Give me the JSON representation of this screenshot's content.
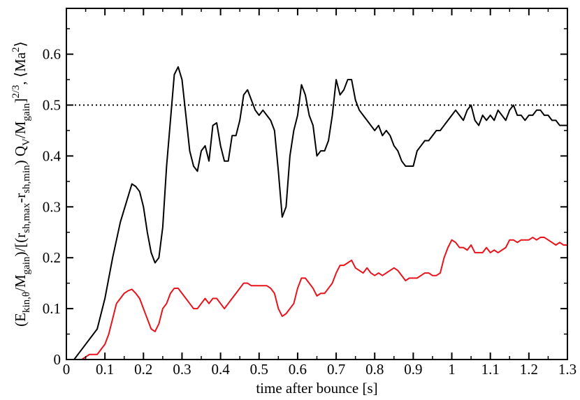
{
  "chart_data": {
    "type": "line",
    "title": "",
    "xlabel": "time after bounce [s]",
    "ylabel_parts": {
      "open": "(E",
      "sub1": "kin,θ",
      "mid1": "/M",
      "sub2": "gain",
      "mid2": ")/[(r",
      "sub3": "sh,max",
      "mid3": "-r",
      "sub4": "sh,min",
      "mid4": ") Q",
      "sub5": "V",
      "mid5": "/M",
      "sub6": "gain",
      "mid6": "]",
      "sup1": "2/3",
      "mid7": ", ⟨Ma",
      "sup2": "2",
      "close": "⟩"
    },
    "xlim": [
      0,
      1.3
    ],
    "ylim": [
      0,
      0.69
    ],
    "xticks": [
      "0",
      "0.1",
      "0.2",
      "0.3",
      "0.4",
      "0.5",
      "0.6",
      "0.7",
      "0.8",
      "0.9",
      "1",
      "1.1",
      "1.2",
      "1.3"
    ],
    "xtick_values": [
      0,
      0.1,
      0.2,
      0.3,
      0.4,
      0.5,
      0.6,
      0.7,
      0.8,
      0.9,
      1.0,
      1.1,
      1.2,
      1.3
    ],
    "yticks": [
      "0",
      "0.1",
      "0.2",
      "0.3",
      "0.4",
      "0.5",
      "0.6"
    ],
    "ytick_values": [
      0,
      0.1,
      0.2,
      0.3,
      0.4,
      0.5,
      0.6
    ],
    "reference_line": {
      "y": 0.5,
      "style": "dotted",
      "color": "#000000"
    },
    "grid": false,
    "series": [
      {
        "color": "#000000",
        "points": [
          [
            0.02,
            0.0
          ],
          [
            0.04,
            0.02
          ],
          [
            0.06,
            0.04
          ],
          [
            0.08,
            0.06
          ],
          [
            0.1,
            0.12
          ],
          [
            0.12,
            0.2
          ],
          [
            0.14,
            0.27
          ],
          [
            0.16,
            0.32
          ],
          [
            0.17,
            0.345
          ],
          [
            0.18,
            0.34
          ],
          [
            0.19,
            0.33
          ],
          [
            0.2,
            0.3
          ],
          [
            0.21,
            0.25
          ],
          [
            0.22,
            0.21
          ],
          [
            0.23,
            0.19
          ],
          [
            0.24,
            0.2
          ],
          [
            0.25,
            0.26
          ],
          [
            0.26,
            0.38
          ],
          [
            0.27,
            0.47
          ],
          [
            0.28,
            0.56
          ],
          [
            0.29,
            0.575
          ],
          [
            0.3,
            0.55
          ],
          [
            0.31,
            0.48
          ],
          [
            0.32,
            0.41
          ],
          [
            0.33,
            0.38
          ],
          [
            0.34,
            0.37
          ],
          [
            0.35,
            0.41
          ],
          [
            0.36,
            0.42
          ],
          [
            0.37,
            0.39
          ],
          [
            0.38,
            0.46
          ],
          [
            0.39,
            0.465
          ],
          [
            0.4,
            0.42
          ],
          [
            0.41,
            0.39
          ],
          [
            0.42,
            0.39
          ],
          [
            0.43,
            0.44
          ],
          [
            0.44,
            0.44
          ],
          [
            0.45,
            0.47
          ],
          [
            0.46,
            0.52
          ],
          [
            0.47,
            0.53
          ],
          [
            0.48,
            0.51
          ],
          [
            0.49,
            0.49
          ],
          [
            0.5,
            0.48
          ],
          [
            0.51,
            0.49
          ],
          [
            0.52,
            0.48
          ],
          [
            0.53,
            0.47
          ],
          [
            0.54,
            0.45
          ],
          [
            0.55,
            0.37
          ],
          [
            0.56,
            0.28
          ],
          [
            0.57,
            0.3
          ],
          [
            0.58,
            0.4
          ],
          [
            0.59,
            0.45
          ],
          [
            0.6,
            0.48
          ],
          [
            0.61,
            0.54
          ],
          [
            0.62,
            0.52
          ],
          [
            0.63,
            0.48
          ],
          [
            0.64,
            0.46
          ],
          [
            0.65,
            0.4
          ],
          [
            0.66,
            0.41
          ],
          [
            0.67,
            0.41
          ],
          [
            0.68,
            0.43
          ],
          [
            0.69,
            0.48
          ],
          [
            0.7,
            0.55
          ],
          [
            0.71,
            0.52
          ],
          [
            0.72,
            0.53
          ],
          [
            0.73,
            0.55
          ],
          [
            0.74,
            0.55
          ],
          [
            0.75,
            0.51
          ],
          [
            0.76,
            0.49
          ],
          [
            0.77,
            0.48
          ],
          [
            0.78,
            0.47
          ],
          [
            0.79,
            0.46
          ],
          [
            0.8,
            0.45
          ],
          [
            0.81,
            0.46
          ],
          [
            0.82,
            0.44
          ],
          [
            0.83,
            0.45
          ],
          [
            0.84,
            0.44
          ],
          [
            0.85,
            0.42
          ],
          [
            0.86,
            0.41
          ],
          [
            0.87,
            0.39
          ],
          [
            0.88,
            0.38
          ],
          [
            0.89,
            0.38
          ],
          [
            0.9,
            0.38
          ],
          [
            0.91,
            0.41
          ],
          [
            0.92,
            0.42
          ],
          [
            0.93,
            0.43
          ],
          [
            0.94,
            0.43
          ],
          [
            0.95,
            0.44
          ],
          [
            0.96,
            0.45
          ],
          [
            0.97,
            0.45
          ],
          [
            0.98,
            0.46
          ],
          [
            0.99,
            0.47
          ],
          [
            1.0,
            0.48
          ],
          [
            1.01,
            0.49
          ],
          [
            1.02,
            0.48
          ],
          [
            1.03,
            0.47
          ],
          [
            1.04,
            0.49
          ],
          [
            1.05,
            0.5
          ],
          [
            1.06,
            0.47
          ],
          [
            1.07,
            0.46
          ],
          [
            1.08,
            0.48
          ],
          [
            1.09,
            0.47
          ],
          [
            1.1,
            0.48
          ],
          [
            1.11,
            0.47
          ],
          [
            1.12,
            0.49
          ],
          [
            1.13,
            0.48
          ],
          [
            1.14,
            0.47
          ],
          [
            1.15,
            0.49
          ],
          [
            1.16,
            0.5
          ],
          [
            1.17,
            0.48
          ],
          [
            1.18,
            0.48
          ],
          [
            1.19,
            0.47
          ],
          [
            1.2,
            0.48
          ],
          [
            1.21,
            0.48
          ],
          [
            1.22,
            0.49
          ],
          [
            1.23,
            0.49
          ],
          [
            1.24,
            0.48
          ],
          [
            1.25,
            0.48
          ],
          [
            1.26,
            0.47
          ],
          [
            1.27,
            0.47
          ],
          [
            1.28,
            0.46
          ],
          [
            1.29,
            0.46
          ],
          [
            1.3,
            0.46
          ]
        ]
      },
      {
        "color": "#e8131b",
        "points": [
          [
            0.04,
            0.0
          ],
          [
            0.06,
            0.01
          ],
          [
            0.08,
            0.01
          ],
          [
            0.1,
            0.03
          ],
          [
            0.11,
            0.05
          ],
          [
            0.12,
            0.08
          ],
          [
            0.13,
            0.11
          ],
          [
            0.14,
            0.12
          ],
          [
            0.15,
            0.13
          ],
          [
            0.16,
            0.135
          ],
          [
            0.17,
            0.138
          ],
          [
            0.18,
            0.13
          ],
          [
            0.19,
            0.12
          ],
          [
            0.2,
            0.1
          ],
          [
            0.21,
            0.08
          ],
          [
            0.22,
            0.06
          ],
          [
            0.23,
            0.055
          ],
          [
            0.24,
            0.07
          ],
          [
            0.25,
            0.1
          ],
          [
            0.26,
            0.11
          ],
          [
            0.27,
            0.13
          ],
          [
            0.28,
            0.14
          ],
          [
            0.29,
            0.14
          ],
          [
            0.3,
            0.13
          ],
          [
            0.31,
            0.12
          ],
          [
            0.32,
            0.11
          ],
          [
            0.33,
            0.1
          ],
          [
            0.34,
            0.1
          ],
          [
            0.35,
            0.11
          ],
          [
            0.36,
            0.12
          ],
          [
            0.37,
            0.11
          ],
          [
            0.38,
            0.12
          ],
          [
            0.39,
            0.12
          ],
          [
            0.4,
            0.11
          ],
          [
            0.41,
            0.1
          ],
          [
            0.42,
            0.11
          ],
          [
            0.43,
            0.12
          ],
          [
            0.44,
            0.13
          ],
          [
            0.45,
            0.14
          ],
          [
            0.46,
            0.15
          ],
          [
            0.47,
            0.15
          ],
          [
            0.48,
            0.145
          ],
          [
            0.49,
            0.145
          ],
          [
            0.5,
            0.145
          ],
          [
            0.51,
            0.145
          ],
          [
            0.52,
            0.145
          ],
          [
            0.53,
            0.14
          ],
          [
            0.54,
            0.13
          ],
          [
            0.55,
            0.1
          ],
          [
            0.56,
            0.085
          ],
          [
            0.57,
            0.09
          ],
          [
            0.58,
            0.1
          ],
          [
            0.59,
            0.11
          ],
          [
            0.6,
            0.14
          ],
          [
            0.61,
            0.16
          ],
          [
            0.62,
            0.16
          ],
          [
            0.63,
            0.15
          ],
          [
            0.64,
            0.14
          ],
          [
            0.65,
            0.125
          ],
          [
            0.66,
            0.13
          ],
          [
            0.67,
            0.13
          ],
          [
            0.68,
            0.14
          ],
          [
            0.69,
            0.15
          ],
          [
            0.7,
            0.17
          ],
          [
            0.71,
            0.185
          ],
          [
            0.72,
            0.185
          ],
          [
            0.73,
            0.19
          ],
          [
            0.74,
            0.195
          ],
          [
            0.75,
            0.18
          ],
          [
            0.76,
            0.175
          ],
          [
            0.77,
            0.17
          ],
          [
            0.78,
            0.18
          ],
          [
            0.79,
            0.17
          ],
          [
            0.8,
            0.165
          ],
          [
            0.81,
            0.17
          ],
          [
            0.82,
            0.165
          ],
          [
            0.83,
            0.17
          ],
          [
            0.84,
            0.175
          ],
          [
            0.85,
            0.18
          ],
          [
            0.86,
            0.175
          ],
          [
            0.87,
            0.165
          ],
          [
            0.88,
            0.155
          ],
          [
            0.89,
            0.16
          ],
          [
            0.9,
            0.16
          ],
          [
            0.91,
            0.16
          ],
          [
            0.92,
            0.165
          ],
          [
            0.93,
            0.17
          ],
          [
            0.94,
            0.17
          ],
          [
            0.95,
            0.165
          ],
          [
            0.96,
            0.165
          ],
          [
            0.97,
            0.17
          ],
          [
            0.98,
            0.2
          ],
          [
            0.99,
            0.22
          ],
          [
            1.0,
            0.235
          ],
          [
            1.01,
            0.23
          ],
          [
            1.02,
            0.22
          ],
          [
            1.03,
            0.22
          ],
          [
            1.04,
            0.215
          ],
          [
            1.05,
            0.225
          ],
          [
            1.06,
            0.21
          ],
          [
            1.07,
            0.21
          ],
          [
            1.08,
            0.21
          ],
          [
            1.09,
            0.22
          ],
          [
            1.1,
            0.21
          ],
          [
            1.11,
            0.215
          ],
          [
            1.12,
            0.21
          ],
          [
            1.13,
            0.215
          ],
          [
            1.14,
            0.22
          ],
          [
            1.15,
            0.235
          ],
          [
            1.16,
            0.235
          ],
          [
            1.17,
            0.23
          ],
          [
            1.18,
            0.235
          ],
          [
            1.19,
            0.235
          ],
          [
            1.2,
            0.235
          ],
          [
            1.21,
            0.24
          ],
          [
            1.22,
            0.235
          ],
          [
            1.23,
            0.24
          ],
          [
            1.24,
            0.24
          ],
          [
            1.25,
            0.235
          ],
          [
            1.26,
            0.23
          ],
          [
            1.27,
            0.225
          ],
          [
            1.28,
            0.23
          ],
          [
            1.29,
            0.225
          ],
          [
            1.3,
            0.225
          ]
        ]
      }
    ]
  }
}
